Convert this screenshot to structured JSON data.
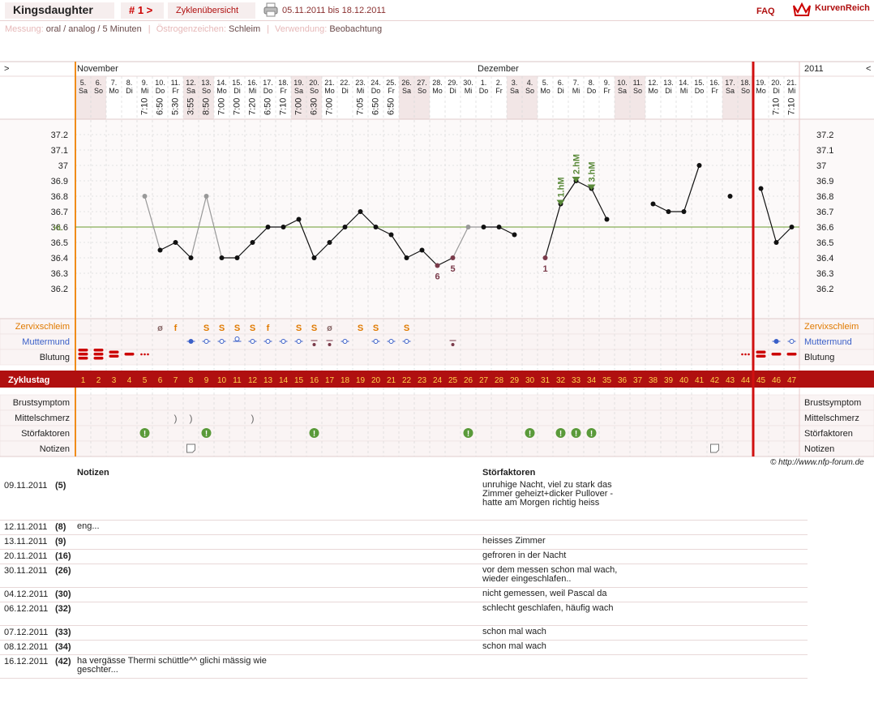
{
  "header": {
    "user": "Kingsdaughter",
    "cycle": "# 1 >",
    "overview": "Zyklenübersicht",
    "date_range": "05.11.2011 bis 18.12.2011",
    "faq": "FAQ",
    "brand": "KurvenReich",
    "print_icon": "printer-icon",
    "logo_icon": "crown-icon"
  },
  "meta": {
    "messung_key": "Messung:",
    "messung_val": "oral / analog / 5 Minuten",
    "oestrogen_key": "Östrogenzeichen:",
    "oestrogen_val": "Schleim",
    "verwendung_key": "Verwendung:",
    "verwendung_val": "Beobachtung"
  },
  "colors": {
    "accent": "#b01010",
    "weekend": "#f2e6e6",
    "orange": "#e07a00",
    "blue": "#3a5fc8",
    "green": "#5a8a3a"
  },
  "chart_data": {
    "type": "line",
    "months": [
      {
        "label": "November",
        "day": 1
      },
      {
        "label": "Dezember",
        "day": 27
      }
    ],
    "year": "2011",
    "nav_left": ">",
    "nav_right": "<",
    "days": [
      {
        "d": "5.",
        "w": "Sa",
        "t": ""
      },
      {
        "d": "6.",
        "w": "So",
        "t": ""
      },
      {
        "d": "7.",
        "w": "Mo",
        "t": ""
      },
      {
        "d": "8.",
        "w": "Di",
        "t": ""
      },
      {
        "d": "9.",
        "w": "Mi",
        "t": "7:10"
      },
      {
        "d": "10.",
        "w": "Do",
        "t": "6:50"
      },
      {
        "d": "11.",
        "w": "Fr",
        "t": "5:30"
      },
      {
        "d": "12.",
        "w": "Sa",
        "t": "3:55"
      },
      {
        "d": "13.",
        "w": "So",
        "t": "8:50"
      },
      {
        "d": "14.",
        "w": "Mo",
        "t": "7:00"
      },
      {
        "d": "15.",
        "w": "Di",
        "t": "7:00"
      },
      {
        "d": "16.",
        "w": "Mi",
        "t": "7:20"
      },
      {
        "d": "17.",
        "w": "Do",
        "t": "6:50"
      },
      {
        "d": "18.",
        "w": "Fr",
        "t": "7:10"
      },
      {
        "d": "19.",
        "w": "Sa",
        "t": "7:00"
      },
      {
        "d": "20.",
        "w": "So",
        "t": "6:30"
      },
      {
        "d": "21.",
        "w": "Mo",
        "t": "7:00"
      },
      {
        "d": "22.",
        "w": "Di",
        "t": ""
      },
      {
        "d": "23.",
        "w": "Mi",
        "t": "7:05"
      },
      {
        "d": "24.",
        "w": "Do",
        "t": "6:50"
      },
      {
        "d": "25.",
        "w": "Fr",
        "t": "6:50"
      },
      {
        "d": "26.",
        "w": "Sa",
        "t": ""
      },
      {
        "d": "27.",
        "w": "So",
        "t": ""
      },
      {
        "d": "28.",
        "w": "Mo",
        "t": ""
      },
      {
        "d": "29.",
        "w": "Di",
        "t": ""
      },
      {
        "d": "30.",
        "w": "Mi",
        "t": ""
      },
      {
        "d": "1.",
        "w": "Do",
        "t": ""
      },
      {
        "d": "2.",
        "w": "Fr",
        "t": ""
      },
      {
        "d": "3.",
        "w": "Sa",
        "t": ""
      },
      {
        "d": "4.",
        "w": "So",
        "t": ""
      },
      {
        "d": "5.",
        "w": "Mo",
        "t": ""
      },
      {
        "d": "6.",
        "w": "Di",
        "t": ""
      },
      {
        "d": "7.",
        "w": "Mi",
        "t": ""
      },
      {
        "d": "8.",
        "w": "Do",
        "t": ""
      },
      {
        "d": "9.",
        "w": "Fr",
        "t": ""
      },
      {
        "d": "10.",
        "w": "Sa",
        "t": ""
      },
      {
        "d": "11.",
        "w": "So",
        "t": ""
      },
      {
        "d": "12.",
        "w": "Mo",
        "t": ""
      },
      {
        "d": "13.",
        "w": "Di",
        "t": ""
      },
      {
        "d": "14.",
        "w": "Mi",
        "t": ""
      },
      {
        "d": "15.",
        "w": "Do",
        "t": ""
      },
      {
        "d": "16.",
        "w": "Fr",
        "t": ""
      },
      {
        "d": "17.",
        "w": "Sa",
        "t": ""
      },
      {
        "d": "18.",
        "w": "So",
        "t": ""
      },
      {
        "d": "19.",
        "w": "Mo",
        "t": ""
      },
      {
        "d": "20.",
        "w": "Di",
        "t": "7:10"
      },
      {
        "d": "21.",
        "w": "Mi",
        "t": "7:10"
      }
    ],
    "ylim": [
      36.1,
      37.3
    ],
    "yticks": [
      "37.2",
      "37.1",
      "37",
      "36.9",
      "36.8",
      "36.7",
      "36.6",
      "36.5",
      "36.4",
      "36.3",
      "36.2"
    ],
    "hl_label": "HL",
    "hl_value": 36.6,
    "temps": [
      null,
      null,
      null,
      null,
      36.8,
      36.45,
      36.5,
      36.4,
      36.8,
      36.4,
      36.4,
      36.5,
      36.6,
      36.6,
      36.65,
      36.4,
      36.5,
      36.6,
      36.7,
      36.6,
      36.55,
      36.4,
      36.45,
      36.35,
      36.4,
      36.6,
      36.6,
      36.6,
      36.55,
      null,
      36.4,
      36.75,
      36.9,
      36.85,
      36.65,
      null,
      null,
      36.75,
      36.7,
      36.7,
      37.0,
      null,
      36.8,
      null,
      36.85,
      36.5,
      36.6
    ],
    "gray_days": [
      5,
      9,
      26
    ],
    "point_labels": [
      {
        "day": 24,
        "text": "6"
      },
      {
        "day": 25,
        "text": "5"
      },
      {
        "day": 31,
        "text": "1"
      }
    ],
    "hm_labels": [
      {
        "day": 32,
        "text": "1.hM"
      },
      {
        "day": 33,
        "text": "2.hM"
      },
      {
        "day": 34,
        "text": "3.hM"
      }
    ],
    "separator_day": 45,
    "cycle_days": [
      "1",
      "2",
      "3",
      "4",
      "5",
      "6",
      "7",
      "8",
      "9",
      "10",
      "11",
      "12",
      "13",
      "14",
      "15",
      "16",
      "17",
      "18",
      "19",
      "20",
      "21",
      "22",
      "23",
      "24",
      "25",
      "26",
      "27",
      "28",
      "29",
      "30",
      "31",
      "32",
      "33",
      "34",
      "35",
      "36",
      "37",
      "38",
      "39",
      "40",
      "41",
      "42",
      "43",
      "44",
      "45",
      "46",
      "47"
    ],
    "zervix": [
      {
        "day": 6,
        "s": "ø"
      },
      {
        "day": 7,
        "s": "f"
      },
      {
        "day": 9,
        "s": "S"
      },
      {
        "day": 10,
        "s": "S"
      },
      {
        "day": 11,
        "s": "S"
      },
      {
        "day": 12,
        "s": "S"
      },
      {
        "day": 13,
        "s": "f"
      },
      {
        "day": 15,
        "s": "S"
      },
      {
        "day": 16,
        "s": "S"
      },
      {
        "day": 17,
        "s": "ø"
      },
      {
        "day": 19,
        "s": "S"
      },
      {
        "day": 20,
        "s": "S"
      },
      {
        "day": 22,
        "s": "S"
      }
    ],
    "muttermund": [
      8,
      9,
      10,
      11,
      12,
      13,
      14,
      15,
      16,
      17,
      18,
      20,
      21,
      22,
      25,
      46,
      47
    ],
    "blutung": [
      {
        "day": 1,
        "v": 3
      },
      {
        "day": 2,
        "v": 3
      },
      {
        "day": 3,
        "v": 2
      },
      {
        "day": 4,
        "v": 1
      },
      {
        "day": 5,
        "v": 0
      },
      {
        "day": 44,
        "v": 0
      },
      {
        "day": 45,
        "v": 2
      },
      {
        "day": 46,
        "v": 1
      },
      {
        "day": 47,
        "v": 1
      }
    ],
    "mittelschmerz": [
      7,
      8,
      12
    ],
    "stoerfaktoren": [
      5,
      9,
      16,
      26,
      30,
      32,
      33,
      34
    ],
    "notizen_days": [
      8,
      42
    ]
  },
  "rows": {
    "zervix": "Zervixschleim",
    "muttermund": "Muttermund",
    "blutung": "Blutung",
    "zyklustag": "Zyklustag",
    "brust": "Brustsymptom",
    "mittel": "Mittelschmerz",
    "stoer": "Störfaktoren",
    "notizen": "Notizen"
  },
  "copyright": "© http://www.nfp-forum.de",
  "notes": {
    "col_notizen": "Notizen",
    "col_stoer": "Störfaktoren",
    "entries": [
      {
        "date": "09.11.2011",
        "day": "(5)",
        "note": "",
        "stoer": "unruhige Nacht, viel zu stark das Zimmer geheizt+dicker Pullover - hatte am Morgen richtig heiss"
      },
      {
        "date": "12.11.2011",
        "day": "(8)",
        "note": "eng...",
        "stoer": ""
      },
      {
        "date": "13.11.2011",
        "day": "(9)",
        "note": "",
        "stoer": "heisses Zimmer"
      },
      {
        "date": "20.11.2011",
        "day": "(16)",
        "note": "",
        "stoer": "gefroren in der Nacht"
      },
      {
        "date": "30.11.2011",
        "day": "(26)",
        "note": "",
        "stoer": "vor dem messen schon mal wach, wieder eingeschlafen.."
      },
      {
        "date": "04.12.2011",
        "day": "(30)",
        "note": "",
        "stoer": "nicht gemessen, weil Pascal da"
      },
      {
        "date": "06.12.2011",
        "day": "(32)",
        "note": "",
        "stoer": "schlecht geschlafen, häufig wach"
      },
      {
        "date": "07.12.2011",
        "day": "(33)",
        "note": "",
        "stoer": "schon mal wach"
      },
      {
        "date": "08.12.2011",
        "day": "(34)",
        "note": "",
        "stoer": "schon mal wach"
      },
      {
        "date": "16.12.2011",
        "day": "(42)",
        "note": "ha vergässe Thermi schüttle^^ glichi mässig wie geschter...",
        "stoer": ""
      }
    ]
  }
}
